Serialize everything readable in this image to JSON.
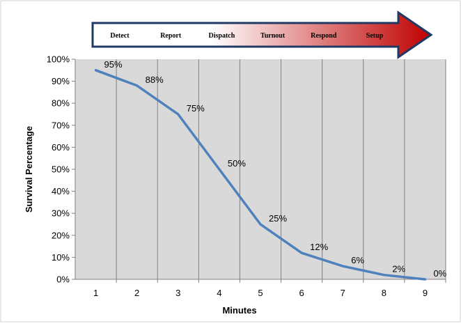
{
  "chart_data": {
    "type": "line",
    "title": "",
    "xlabel": "Minutes",
    "ylabel": "Survival Percentage",
    "x": [
      1,
      2,
      3,
      4,
      5,
      6,
      7,
      8,
      9
    ],
    "series": [
      {
        "values": [
          95,
          88,
          75,
          50,
          25,
          12,
          6,
          2,
          0
        ],
        "labels": [
          "95%",
          "88%",
          "75%",
          "50%",
          "25%",
          "12%",
          "6%",
          "2%",
          "0%"
        ],
        "color": "#4f81bd"
      }
    ],
    "xlim": [
      0,
      9
    ],
    "ylim": [
      0,
      100
    ],
    "y_ticks": [
      "0%",
      "10%",
      "20%",
      "30%",
      "40%",
      "50%",
      "60%",
      "70%",
      "80%",
      "90%",
      "100%"
    ],
    "x_ticks": [
      "1",
      "2",
      "3",
      "4",
      "5",
      "6",
      "7",
      "8",
      "9"
    ],
    "grid": "vertical",
    "legend": "none",
    "plot_background": "#d9d9d9",
    "banner": {
      "stages": [
        "Detect",
        "Report",
        "Dispatch",
        "Turnout",
        "Respond",
        "Setup"
      ],
      "gradient_start": "#ffffff",
      "gradient_end": "#c00000",
      "border_color": "#1f3864"
    }
  }
}
